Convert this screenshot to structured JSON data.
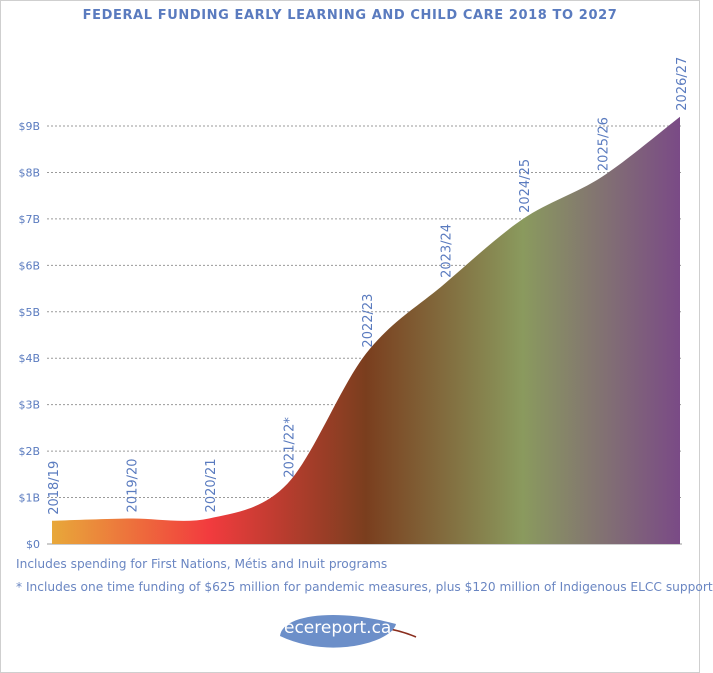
{
  "title": "FEDERAL FUNDING EARLY LEARNING AND CHILD CARE 2018 TO 2027",
  "notes": [
    "Includes spending for First Nations, Métis and Inuit programs",
    "* Includes one time funding of $625 million for pandemic measures, plus $120 million of Indigenous ELCC support"
  ],
  "logo": {
    "text": "ecereport.ca"
  },
  "colors": {
    "title": "#5a7bbf",
    "labels": "#5a7bbf",
    "logo": "#6c8fc9",
    "gradient": [
      "#e8a83a",
      "#f23b3e",
      "#7a3e1e",
      "#8a9a5e",
      "#7a4a86"
    ]
  },
  "chart_data": {
    "type": "area",
    "title": "FEDERAL FUNDING EARLY LEARNING AND CHILD CARE 2018 TO 2027",
    "xlabel": "",
    "ylabel": "",
    "categories": [
      "2018/19",
      "2019/20",
      "2020/21",
      "2021/22*",
      "2022/23",
      "2023/24",
      "2024/25",
      "2025/26",
      "2026/27"
    ],
    "values": [
      0.5,
      0.55,
      0.55,
      1.3,
      4.1,
      5.6,
      7.0,
      7.9,
      9.2
    ],
    "units": "billions of dollars",
    "ylim": [
      0,
      9
    ],
    "yticks": [
      0,
      1,
      2,
      3,
      4,
      5,
      6,
      7,
      8,
      9
    ],
    "ytick_labels": [
      "$0",
      "$1B",
      "$2B",
      "$3B",
      "$4B",
      "$5B",
      "$6B",
      "$7B",
      "$8B",
      "$9B"
    ],
    "grid": true,
    "legend": "none"
  }
}
